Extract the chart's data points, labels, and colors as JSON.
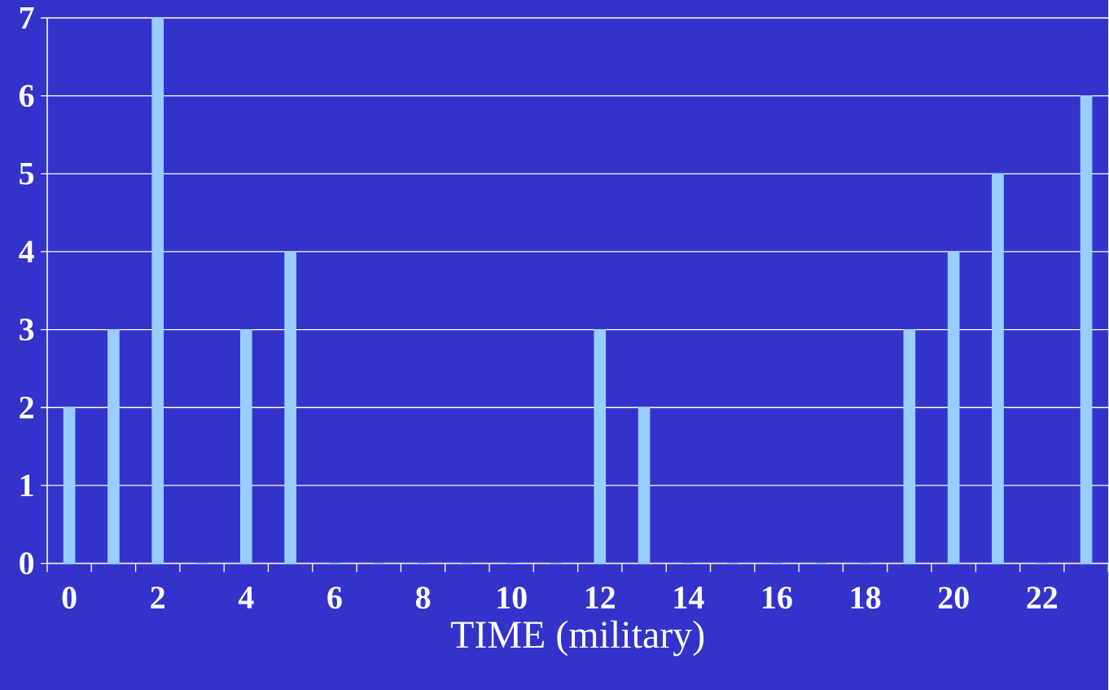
{
  "chart_data": {
    "type": "bar",
    "xlabel": "TIME (military)",
    "categories": [
      "0",
      null,
      "2",
      null,
      "4",
      null,
      "6",
      null,
      "8",
      null,
      "10",
      null,
      "12",
      null,
      "14",
      null,
      "16",
      null,
      "18",
      null,
      "20",
      null,
      "22",
      null
    ],
    "values": [
      2,
      3,
      7,
      0,
      3,
      4,
      0,
      0,
      0,
      0,
      0,
      0,
      3,
      2,
      0,
      0,
      0,
      0,
      0,
      3,
      4,
      5,
      0,
      6
    ],
    "color": "#99ccff",
    "ylim": [
      0,
      7
    ],
    "yticks": [
      0,
      1,
      2,
      3,
      4,
      5,
      6,
      7
    ],
    "grid": "y"
  }
}
